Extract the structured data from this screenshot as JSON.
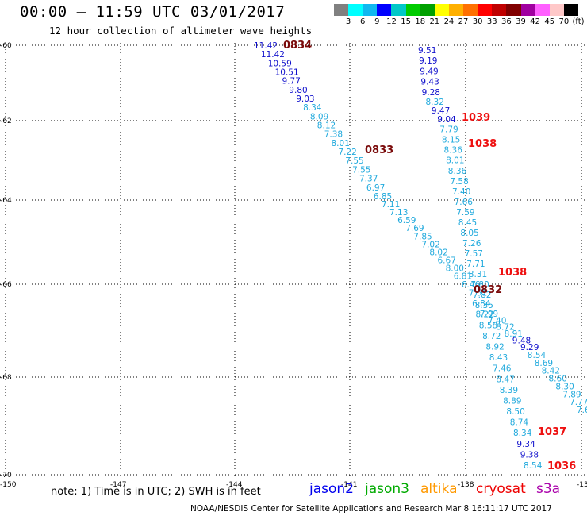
{
  "title": "00:00 – 11:59 UTC 03/01/2017",
  "subtitle": "12 hour collection of altimeter wave heights",
  "colors": {
    "track_dark": "#1010cc",
    "track_light": "#22aadd",
    "time_label": "#7a0a0a",
    "time_label_red": "#ee1111"
  },
  "scale": {
    "swatches": [
      "#808080",
      "#00ffff",
      "#10b8f0",
      "#0000ff",
      "#00c8c8",
      "#00cc00",
      "#00a000",
      "#ffff00",
      "#ffb000",
      "#ff7000",
      "#ff0000",
      "#c00000",
      "#800000",
      "#a000a0",
      "#ff60ff",
      "#ffc8c8",
      "#000000"
    ],
    "labels": [
      "3",
      "6",
      "9",
      "12",
      "15",
      "18",
      "21",
      "24",
      "27",
      "30",
      "33",
      "36",
      "39",
      "42",
      "45",
      "70",
      "(ft)"
    ]
  },
  "lat_labels": [
    "-60",
    "-62",
    "-64",
    "-66",
    "-68",
    "-70"
  ],
  "lon_labels": [
    "-150",
    "-147",
    "-144",
    "-141",
    "-138",
    "-13"
  ],
  "track_a": {
    "values": [
      "11.42",
      "11.42",
      "10.59",
      "10.51",
      "9.77",
      "9.80",
      "9.03",
      "8.34",
      "8.09",
      "8.12",
      "7.38",
      "8.01",
      "7.22",
      "7.55",
      "7.55",
      "7.37",
      "6.97",
      "6.85",
      "7.11",
      "7.13",
      "6.59",
      "7.69",
      "7.85",
      "7.02",
      "8.02",
      "6.67",
      "8.00",
      "6.81",
      "6.46",
      "7.51",
      "6.84",
      "8.22",
      "8.58",
      "8.72",
      "8.92",
      "8.43",
      "7.46",
      "8.47",
      "8.39",
      "8.89",
      "8.50",
      "8.74",
      "8.34",
      "9.34",
      "9.38",
      "8.54"
    ],
    "dark": [
      0,
      1,
      2,
      3,
      4,
      5,
      6,
      43,
      44
    ]
  },
  "track_b": {
    "values": [
      "9.51",
      "9.19",
      "9.49",
      "9.43",
      "9.28",
      "8.32",
      "9.47",
      "9.04",
      "7.79",
      "8.15",
      "8.36",
      "8.01",
      "8.36",
      "7.58",
      "7.40",
      "7.66",
      "7.59",
      "8.45",
      "8.05",
      "7.26",
      "7.57",
      "7.71",
      "8.31",
      "7.80",
      "7.82",
      "8.35",
      "7.99",
      "7.40",
      "8.72",
      "8.91",
      "9.48",
      "9.29",
      "8.54",
      "8.69",
      "8.42",
      "8.60",
      "8.30",
      "7.89",
      "7.77",
      "7.6"
    ],
    "dark": [
      0,
      1,
      2,
      3,
      4,
      6,
      7,
      30,
      31
    ]
  },
  "time_labels": [
    "0834",
    "0833",
    "0832",
    "1039",
    "1038",
    "1038",
    "1037",
    "1036"
  ],
  "note": "note: 1) Time is in UTC; 2) SWH is in feet",
  "satellites": [
    {
      "name": "jason2",
      "color": "#0000ee"
    },
    {
      "name": "jason3",
      "color": "#00aa00"
    },
    {
      "name": "altika",
      "color": "#ff9900"
    },
    {
      "name": "cryosat",
      "color": "#ee0000"
    },
    {
      "name": "s3a",
      "color": "#aa00aa"
    }
  ],
  "footer": "NOAA/NESDIS Center for Satellite Applications and Research   Mar  8 16:11:17 UTC 2017"
}
